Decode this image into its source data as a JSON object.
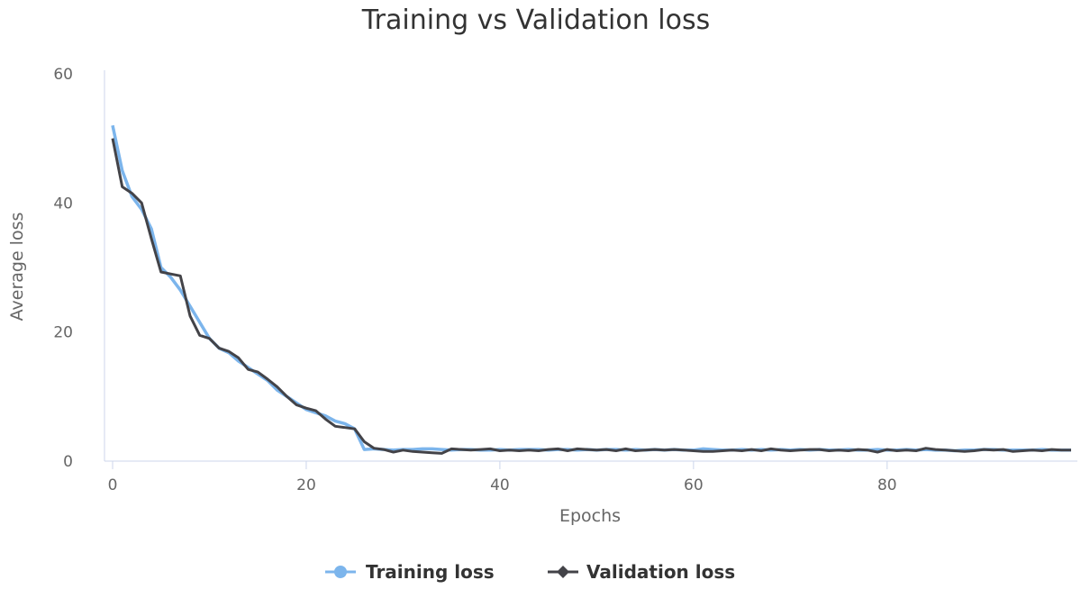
{
  "chart_data": {
    "type": "line",
    "title": "Training vs Validation loss",
    "xlabel": "Epochs",
    "ylabel": "Average loss",
    "xlim": [
      0,
      99
    ],
    "ylim": [
      0,
      60
    ],
    "xticks": [
      0,
      20,
      40,
      60,
      80
    ],
    "yticks": [
      0,
      20,
      40,
      60
    ],
    "grid": false,
    "legend_position": "bottom-center",
    "series": [
      {
        "name": "Training loss",
        "color": "#7cb5ec",
        "marker": "circle",
        "values": [
          52,
          45,
          41,
          39,
          36,
          30,
          28.5,
          26.5,
          24,
          21.5,
          19,
          17.5,
          16.8,
          15.5,
          14.5,
          13.5,
          12.5,
          11,
          10,
          9,
          8,
          7.5,
          7,
          6.2,
          5.8,
          5,
          1.8,
          1.9,
          1.8,
          1.7,
          1.8,
          1.8,
          1.9,
          1.9,
          1.8,
          1.7,
          1.8,
          1.8,
          1.7,
          1.7,
          1.8,
          1.7,
          1.8,
          1.8,
          1.8,
          1.7,
          1.8,
          1.8,
          1.7,
          1.8,
          1.7,
          1.8,
          1.8,
          1.7,
          1.8,
          1.7,
          1.8,
          1.7,
          1.8,
          1.7,
          1.7,
          1.9,
          1.8,
          1.7,
          1.7,
          1.8,
          1.7,
          1.8,
          1.7,
          1.8,
          1.7,
          1.8,
          1.7,
          1.8,
          1.7,
          1.7,
          1.8,
          1.7,
          1.7,
          1.8,
          1.7,
          1.7,
          1.8,
          1.7,
          1.8,
          1.7,
          1.7,
          1.6,
          1.7,
          1.7,
          1.8,
          1.8,
          1.7,
          1.7,
          1.7,
          1.7,
          1.8,
          1.7,
          1.7,
          1.7
        ]
      },
      {
        "name": "Validation loss",
        "color": "#434348",
        "marker": "diamond",
        "values": [
          50,
          42.5,
          41.5,
          40,
          34.5,
          29.3,
          29,
          28.7,
          22.5,
          19.5,
          19,
          17.5,
          17,
          16,
          14.2,
          13.8,
          12.7,
          11.5,
          10,
          8.7,
          8.2,
          7.8,
          6.5,
          5.4,
          5.2,
          5,
          3,
          2,
          1.8,
          1.4,
          1.7,
          1.5,
          1.4,
          1.3,
          1.2,
          1.9,
          1.8,
          1.7,
          1.8,
          1.9,
          1.6,
          1.7,
          1.6,
          1.7,
          1.6,
          1.8,
          1.9,
          1.6,
          1.9,
          1.8,
          1.7,
          1.8,
          1.6,
          1.9,
          1.6,
          1.7,
          1.8,
          1.7,
          1.8,
          1.7,
          1.6,
          1.5,
          1.5,
          1.6,
          1.7,
          1.6,
          1.8,
          1.6,
          1.9,
          1.7,
          1.6,
          1.7,
          1.8,
          1.8,
          1.6,
          1.7,
          1.6,
          1.8,
          1.7,
          1.4,
          1.8,
          1.6,
          1.7,
          1.6,
          2.0,
          1.8,
          1.7,
          1.6,
          1.5,
          1.6,
          1.8,
          1.7,
          1.8,
          1.5,
          1.6,
          1.7,
          1.6,
          1.8,
          1.7,
          1.7
        ]
      }
    ]
  }
}
